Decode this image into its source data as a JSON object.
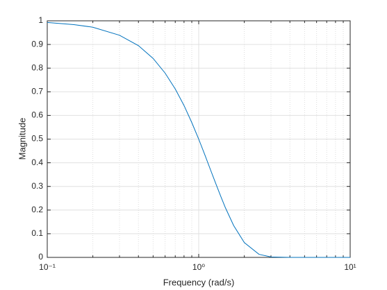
{
  "chart_data": {
    "type": "line",
    "xlabel": "Frequency (rad/s)",
    "ylabel": "Magnitude",
    "xscale": "log",
    "grid": true,
    "xlim": [
      0.1,
      10
    ],
    "ylim": [
      0,
      1
    ],
    "xticks": [
      {
        "value": 0.1,
        "label": "10⁻¹"
      },
      {
        "value": 1,
        "label": "10⁰"
      },
      {
        "value": 10,
        "label": "10¹"
      }
    ],
    "xminorticks": [
      0.2,
      0.3,
      0.4,
      0.5,
      0.6,
      0.7,
      0.8,
      0.9,
      2,
      3,
      4,
      5,
      6,
      7,
      8,
      9
    ],
    "yticks": [
      0,
      0.1,
      0.2,
      0.3,
      0.4,
      0.5,
      0.6,
      0.7,
      0.8,
      0.9,
      1
    ],
    "x": [
      0.1,
      0.15,
      0.2,
      0.3,
      0.4,
      0.5,
      0.6,
      0.7,
      0.8,
      0.9,
      1,
      1.1,
      1.2,
      1.3,
      1.4,
      1.5,
      1.7,
      2,
      2.5,
      3,
      4,
      5,
      7,
      10
    ],
    "series": [
      {
        "color": "#0072bd",
        "values": [
          0.993,
          0.984,
          0.973,
          0.939,
          0.895,
          0.841,
          0.779,
          0.712,
          0.642,
          0.57,
          0.5,
          0.432,
          0.368,
          0.31,
          0.257,
          0.21,
          0.135,
          0.0625,
          0.013,
          0.002,
          0,
          0,
          0,
          0
        ]
      }
    ]
  }
}
